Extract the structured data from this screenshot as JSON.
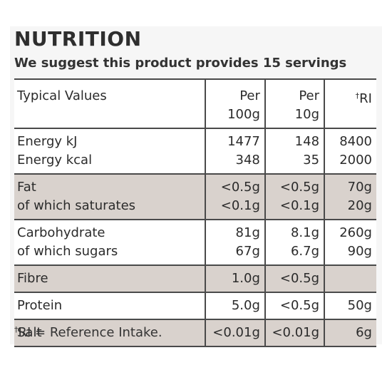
{
  "title": "NUTRITION",
  "subtitle": "We suggest this product provides 15 servings",
  "header": {
    "label": "Typical Values",
    "per100_line1": "Per",
    "per100_line2": "100g",
    "per10_line1": "Per",
    "per10_line2": "10g",
    "ri_mark": "†",
    "ri_label": "RI"
  },
  "rows": [
    {
      "shaded": false,
      "labels": [
        "Energy kJ",
        "Energy kcal"
      ],
      "per100": [
        "1477",
        "348"
      ],
      "per10": [
        "148",
        "35"
      ],
      "ri": [
        "8400",
        "2000"
      ]
    },
    {
      "shaded": true,
      "labels": [
        "Fat",
        "of which saturates"
      ],
      "per100": [
        "<0.5g",
        "<0.1g"
      ],
      "per10": [
        "<0.5g",
        "<0.1g"
      ],
      "ri": [
        "70g",
        "20g"
      ]
    },
    {
      "shaded": false,
      "labels": [
        "Carbohydrate",
        "of which sugars"
      ],
      "per100": [
        "81g",
        "67g"
      ],
      "per10": [
        "8.1g",
        "6.7g"
      ],
      "ri": [
        "260g",
        "90g"
      ]
    },
    {
      "shaded": true,
      "labels": [
        "Fibre"
      ],
      "per100": [
        "1.0g"
      ],
      "per10": [
        "<0.5g"
      ],
      "ri": [
        ""
      ]
    },
    {
      "shaded": false,
      "labels": [
        "Protein"
      ],
      "per100": [
        "5.0g"
      ],
      "per10": [
        "<0.5g"
      ],
      "ri": [
        "50g"
      ]
    },
    {
      "shaded": true,
      "labels": [
        "Salt"
      ],
      "per100": [
        "<0.01g"
      ],
      "per10": [
        "<0.01g"
      ],
      "ri": [
        "6g"
      ]
    }
  ],
  "footnote": {
    "mark": "†",
    "text": "RI = Reference Intake."
  },
  "colors": {
    "shade": "#d9d2cd",
    "rule": "#4a4a4a",
    "text": "#2b2b2b"
  }
}
